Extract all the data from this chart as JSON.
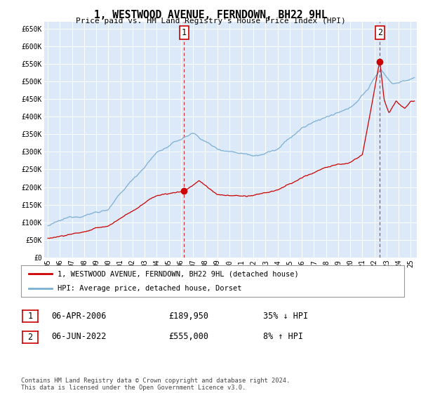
{
  "title": "1, WESTWOOD AVENUE, FERNDOWN, BH22 9HL",
  "subtitle": "Price paid vs. HM Land Registry's House Price Index (HPI)",
  "ylabel_ticks": [
    "£0",
    "£50K",
    "£100K",
    "£150K",
    "£200K",
    "£250K",
    "£300K",
    "£350K",
    "£400K",
    "£450K",
    "£500K",
    "£550K",
    "£600K",
    "£650K"
  ],
  "ytick_values": [
    0,
    50000,
    100000,
    150000,
    200000,
    250000,
    300000,
    350000,
    400000,
    450000,
    500000,
    550000,
    600000,
    650000
  ],
  "ylim": [
    0,
    670000
  ],
  "xlim_start": 1994.7,
  "xlim_end": 2025.5,
  "background_color": "#dce9f8",
  "grid_color": "#ffffff",
  "red_line_color": "#cc0000",
  "blue_line_color": "#7bafd4",
  "transaction1_x": 2006.27,
  "transaction1_y": 189950,
  "transaction1_label": "1",
  "transaction2_x": 2022.44,
  "transaction2_y": 555000,
  "transaction2_label": "2",
  "legend_entry1": "1, WESTWOOD AVENUE, FERNDOWN, BH22 9HL (detached house)",
  "legend_entry2": "HPI: Average price, detached house, Dorset",
  "table_row1_num": "1",
  "table_row1_date": "06-APR-2006",
  "table_row1_price": "£189,950",
  "table_row1_hpi": "35% ↓ HPI",
  "table_row2_num": "2",
  "table_row2_date": "06-JUN-2022",
  "table_row2_price": "£555,000",
  "table_row2_hpi": "8% ↑ HPI",
  "footer": "Contains HM Land Registry data © Crown copyright and database right 2024.\nThis data is licensed under the Open Government Licence v3.0.",
  "xtick_labels": [
    "95",
    "96",
    "97",
    "98",
    "99",
    "00",
    "01",
    "02",
    "03",
    "04",
    "05",
    "06",
    "07",
    "08",
    "09",
    "10",
    "11",
    "12",
    "13",
    "14",
    "15",
    "16",
    "17",
    "18",
    "19",
    "20",
    "21",
    "22",
    "23",
    "24",
    "25"
  ],
  "xtick_values": [
    1995,
    1996,
    1997,
    1998,
    1999,
    2000,
    2001,
    2002,
    2003,
    2004,
    2005,
    2006,
    2007,
    2008,
    2009,
    2010,
    2011,
    2012,
    2013,
    2014,
    2015,
    2016,
    2017,
    2018,
    2019,
    2020,
    2021,
    2022,
    2023,
    2024,
    2025
  ]
}
